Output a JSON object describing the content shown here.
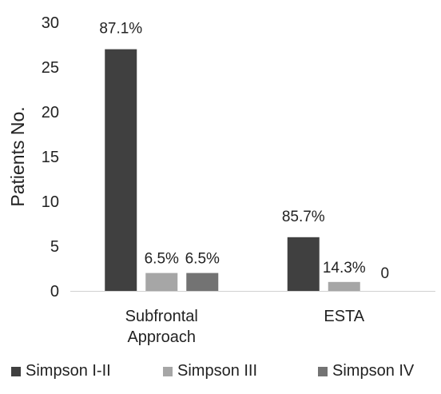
{
  "chart_data": {
    "type": "bar",
    "title": "",
    "xlabel": "",
    "ylabel": "Patients No.",
    "ylim": [
      0,
      30
    ],
    "yticks": [
      0,
      5,
      10,
      15,
      20,
      25,
      30
    ],
    "grid": false,
    "legend_position": "bottom",
    "categories": [
      [
        "Subfrontal",
        "Approach"
      ],
      [
        "ESTA"
      ]
    ],
    "series": [
      {
        "name": "Simpson I-II",
        "color": "#404040",
        "values": [
          27,
          6
        ],
        "labels": [
          "87.1%",
          "85.7%"
        ]
      },
      {
        "name": "Simpson III",
        "color": "#a6a6a6",
        "values": [
          2,
          1
        ],
        "labels": [
          "6.5%",
          "14.3%"
        ]
      },
      {
        "name": "Simpson IV",
        "color": "#737373",
        "values": [
          2,
          0
        ],
        "labels": [
          "6.5%",
          "0"
        ]
      }
    ]
  }
}
